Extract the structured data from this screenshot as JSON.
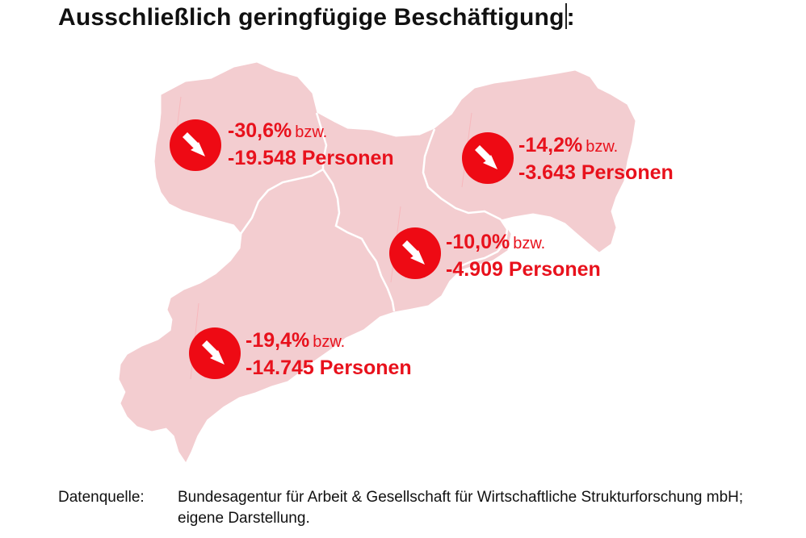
{
  "title": "Ausschließlich geringfügige Beschäftigung",
  "title_suffix": ":",
  "colors": {
    "region_fill": "#f3cdd0",
    "border": "#ffffff",
    "accent": "#e8111c"
  },
  "regions": [
    {
      "id": "north-west",
      "percent": "-30,6%",
      "connector": "bzw.",
      "persons": "-19.548 Personen",
      "icon": "arrow-down-right-icon"
    },
    {
      "id": "east",
      "percent": "-14,2%",
      "connector": "bzw.",
      "persons": "-3.643 Personen",
      "icon": "arrow-down-right-icon"
    },
    {
      "id": "center",
      "percent": "-10,0%",
      "connector": "bzw.",
      "persons": "-4.909 Personen",
      "icon": "arrow-down-right-icon"
    },
    {
      "id": "south-west",
      "percent": "-19,4%",
      "connector": "bzw.",
      "persons": "-14.745 Personen",
      "icon": "arrow-down-right-icon"
    }
  ],
  "source": {
    "label": "Datenquelle:",
    "text": "Bundesagentur für Arbeit & Gesellschaft für Wirtschaftliche Strukturforschung mbH; eigene Darstellung."
  }
}
